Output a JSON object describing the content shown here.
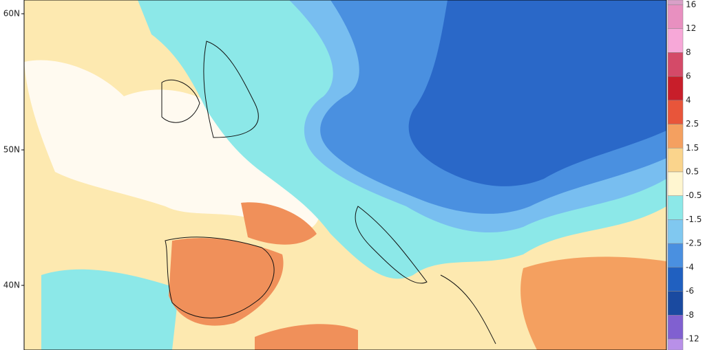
{
  "map": {
    "lat_labels": [
      "60N",
      "50N",
      "40N"
    ],
    "colorbar": {
      "labels": [
        "16",
        "12",
        "8",
        "6",
        "4",
        "2.5",
        "1.5",
        "0.5",
        "-0.5",
        "-1.5",
        "-2.5",
        "-4",
        "-6",
        "-8",
        "-12"
      ],
      "colors": [
        "#d9a0c8",
        "#e890c0",
        "#f7a8d8",
        "#d44a68",
        "#c81e2a",
        "#e8553a",
        "#f4a060",
        "#fad48c",
        "#fff6d0",
        "#8ce8e8",
        "#80c8f0",
        "#4a90e0",
        "#2060c0",
        "#1a4aa0",
        "#8060d0",
        "#b890e8"
      ]
    }
  }
}
